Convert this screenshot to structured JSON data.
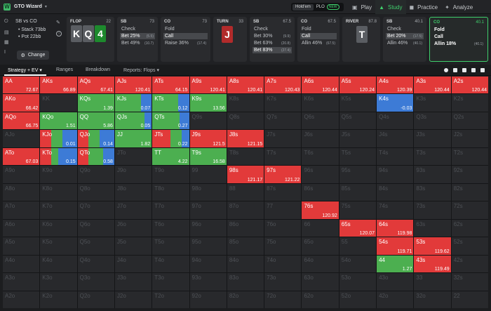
{
  "app": {
    "name": "GTO Wizard"
  },
  "game_tabs": [
    {
      "label": "Hold'em",
      "active": true
    },
    {
      "label": "PLO",
      "badge": "NEW",
      "active": false
    }
  ],
  "nav": {
    "tabs": [
      {
        "label": "Play",
        "icon": "gamepad-icon",
        "active": false
      },
      {
        "label": "Study",
        "icon": "mortarboard-icon",
        "active": true
      },
      {
        "label": "Practice",
        "icon": "controller-icon",
        "active": false
      },
      {
        "label": "Analyze",
        "icon": "magic-wand-icon",
        "active": false
      }
    ]
  },
  "spot": {
    "title": "SB vs CO",
    "stack": "• Stack 73bb",
    "pot": "• Pot 22bb",
    "change_label": "Change"
  },
  "nodes": [
    {
      "label": "FLOP",
      "value": "22",
      "cards": [
        {
          "rank": "K",
          "color": "grey"
        },
        {
          "rank": "Q",
          "color": "grey"
        },
        {
          "rank": "4",
          "color": "green"
        }
      ]
    },
    {
      "label": "SB",
      "value": "73",
      "actions": [
        {
          "text": "Check",
          "size": "",
          "selected": false
        },
        {
          "text": "Bet 25%",
          "size": "(5.5)",
          "selected": true
        },
        {
          "text": "Bet 49%",
          "size": "(10.7)",
          "selected": false
        }
      ]
    },
    {
      "label": "CO",
      "value": "73",
      "actions": [
        {
          "text": "Fold",
          "size": "",
          "selected": false
        },
        {
          "text": "Call",
          "size": "",
          "selected": true
        },
        {
          "text": "Raise 36%",
          "size": "(17.4)",
          "selected": false
        }
      ]
    },
    {
      "label": "TURN",
      "value": "33",
      "cards": [
        {
          "rank": "J",
          "color": "red"
        }
      ]
    },
    {
      "label": "SB",
      "value": "67.5",
      "actions": [
        {
          "text": "Check",
          "size": "",
          "selected": false
        },
        {
          "text": "Bet 30%",
          "size": "(9.9)",
          "selected": false
        },
        {
          "text": "Bet 63%",
          "size": "(20.8)",
          "selected": false
        },
        {
          "text": "Bet 83%",
          "size": "(27.4)",
          "selected": true
        }
      ]
    },
    {
      "label": "CO",
      "value": "67.5",
      "actions": [
        {
          "text": "Fold",
          "size": "",
          "selected": false
        },
        {
          "text": "Call",
          "size": "",
          "selected": true
        },
        {
          "text": "Allin 46%",
          "size": "(67.5)",
          "selected": false
        }
      ]
    },
    {
      "label": "RIVER",
      "value": "87.8",
      "cards": [
        {
          "rank": "T",
          "color": "grey"
        }
      ]
    },
    {
      "label": "SB",
      "value": "40.1",
      "actions": [
        {
          "text": "Check",
          "size": "",
          "selected": false
        },
        {
          "text": "Bet 20%",
          "size": "(17.5)",
          "selected": true
        },
        {
          "text": "Allin 46%",
          "size": "(40.1)",
          "selected": false
        }
      ]
    },
    {
      "label": "CO",
      "value": "40.1",
      "actions": [
        {
          "text": "Fold",
          "size": "",
          "selected": false
        },
        {
          "text": "Call",
          "size": "",
          "selected": false
        },
        {
          "text": "Allin 18%",
          "size": "(40.1)",
          "selected": false
        }
      ]
    }
  ],
  "controls": {
    "tabs": [
      {
        "label": "Strategy + EV ▾"
      },
      {
        "label": "Ranges"
      },
      {
        "label": "Breakdown"
      },
      {
        "label": "Reports: Flops ▾"
      }
    ]
  },
  "colors": {
    "fold": "#3d7bd6",
    "call": "#4caf50",
    "raise": "#e23a3a",
    "empty": "#28292c",
    "accent": "#3fcf6c"
  },
  "ranks": [
    "A",
    "K",
    "Q",
    "J",
    "T",
    "9",
    "8",
    "7",
    "6",
    "5",
    "4",
    "3",
    "2"
  ],
  "cells": {
    "AA": {
      "ev": "72.67",
      "r": 1
    },
    "AKs": {
      "ev": "66.89",
      "r": 1
    },
    "AQs": {
      "ev": "67.41",
      "r": 1
    },
    "AJs": {
      "ev": "120.41",
      "r": 1
    },
    "ATs": {
      "ev": "64.15",
      "r": 1
    },
    "A9s": {
      "ev": "120.41",
      "r": 1
    },
    "A8s": {
      "ev": "120.41",
      "r": 1
    },
    "A7s": {
      "ev": "120.43",
      "r": 1
    },
    "A6s": {
      "ev": "120.44",
      "r": 1
    },
    "A5s": {
      "ev": "120.24",
      "r": 1
    },
    "A4s": {
      "ev": "120.39",
      "r": 1
    },
    "A3s": {
      "ev": "120.44",
      "r": 1
    },
    "A2s": {
      "ev": "120.44",
      "r": 1
    },
    "AKo": {
      "ev": "66.42",
      "r": 1
    },
    "KQs": {
      "ev": "1.39",
      "c": 1
    },
    "KJs": {
      "ev": "0.07",
      "c": 0.7,
      "f": 0.3
    },
    "KTs": {
      "ev": "0.12",
      "c": 0.7,
      "f": 0.3
    },
    "K9s": {
      "ev": "13.56",
      "c": 1
    },
    "K4s": {
      "ev": "-0.03",
      "f": 1
    },
    "AQo": {
      "ev": "66.75",
      "r": 1
    },
    "KQo": {
      "ev": "1.51",
      "c": 1
    },
    "QQ": {
      "ev": "5.86",
      "c": 1
    },
    "QJs": {
      "ev": "0.05",
      "c": 0.8,
      "f": 0.2
    },
    "QTs": {
      "ev": "0.27",
      "c": 0.75,
      "f": 0.25
    },
    "KJo": {
      "ev": "0.01",
      "r": 0.3,
      "c": 0.3,
      "f": 0.4
    },
    "QJo": {
      "ev": "0.14",
      "r": 0.3,
      "c": 0.3,
      "f": 0.4
    },
    "JJ": {
      "ev": "1.82",
      "c": 1
    },
    "JTs": {
      "ev": "0.22",
      "r": 0.5,
      "c": 0.3,
      "f": 0.2
    },
    "J9s": {
      "ev": "121.5",
      "r": 1
    },
    "J8s": {
      "ev": "121.15",
      "r": 1
    },
    "ATo": {
      "ev": "67.03",
      "r": 1
    },
    "KTo": {
      "ev": "0.15",
      "r": 0.3,
      "c": 0.2,
      "f": 0.5
    },
    "QTo": {
      "ev": "0.58",
      "r": 0.3,
      "c": 0.4,
      "f": 0.3
    },
    "TT": {
      "ev": "4.22",
      "c": 1
    },
    "T9s": {
      "ev": "16.58",
      "c": 1
    },
    "98s": {
      "ev": "121.17",
      "r": 1
    },
    "97s": {
      "ev": "121.22",
      "r": 1
    },
    "76s": {
      "ev": "120.92",
      "r": 1
    },
    "65s": {
      "ev": "120.07",
      "r": 1
    },
    "64s": {
      "ev": "119.98",
      "r": 1
    },
    "54s": {
      "ev": "119.71",
      "r": 1
    },
    "53s": {
      "ev": "119.62",
      "r": 1
    },
    "44": {
      "ev": "1.27",
      "c": 1
    },
    "43s": {
      "ev": "119.49",
      "r": 1
    }
  }
}
